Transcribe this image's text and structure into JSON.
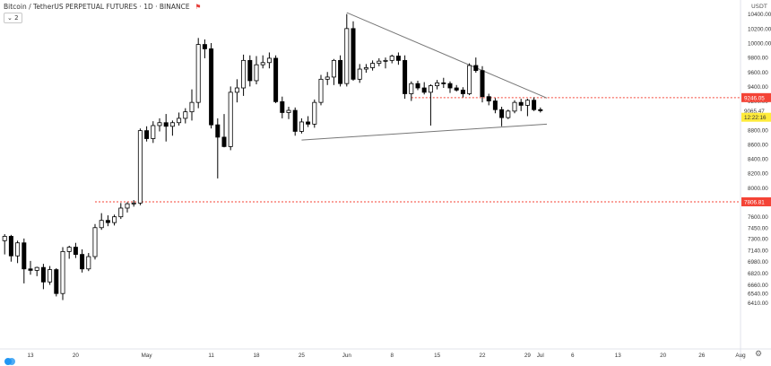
{
  "header": {
    "title": "Bitcoin / TetherUS PERPETUAL FUTURES · 1D · BINANCE",
    "flag": "⚑",
    "interval_button": "⌄ 2"
  },
  "price_axis": {
    "unit": "USDT",
    "ticks": [
      "10400.00",
      "10200.00",
      "10000.00",
      "9800.00",
      "9600.00",
      "9400.00",
      "9200.00",
      "8800.00",
      "8600.00",
      "8400.00",
      "8200.00",
      "8000.00",
      "7800.00",
      "7600.00",
      "7450.00",
      "7300.00",
      "7140.00",
      "6980.00",
      "6820.00",
      "6660.00",
      "6540.00",
      "6410.00"
    ],
    "labels": [
      {
        "text": "9246.05",
        "price": 9246.05,
        "bg": "#f44336",
        "color": "#ffffff"
      },
      {
        "text": "9065.47",
        "price": 9065.47,
        "bg": "#ffffff",
        "color": "#333333"
      },
      {
        "text": "12:22:16",
        "price": 8975,
        "bg": "#ffeb3b",
        "color": "#333333"
      },
      {
        "text": "7806.81",
        "price": 7806.81,
        "bg": "#f44336",
        "color": "#ffffff"
      }
    ]
  },
  "time_axis": {
    "ticks": [
      {
        "label": "13",
        "day": 0
      },
      {
        "label": "20",
        "day": 7
      },
      {
        "label": "May",
        "day": 18
      },
      {
        "label": "11",
        "day": 28
      },
      {
        "label": "18",
        "day": 35
      },
      {
        "label": "25",
        "day": 42
      },
      {
        "label": "Jun",
        "day": 49
      },
      {
        "label": "8",
        "day": 56
      },
      {
        "label": "15",
        "day": 63
      },
      {
        "label": "22",
        "day": 70
      },
      {
        "label": "29",
        "day": 77
      },
      {
        "label": "Jul",
        "day": 79
      },
      {
        "label": "6",
        "day": 84
      },
      {
        "label": "13",
        "day": 91
      },
      {
        "label": "20",
        "day": 98
      },
      {
        "label": "26",
        "day": 104
      },
      {
        "label": "Aug",
        "day": 110
      }
    ]
  },
  "chart_data": {
    "type": "candlestick",
    "title": "Bitcoin / TetherUS PERPETUAL FUTURES · 1D · BINANCE",
    "candles": [
      {
        "day": -4,
        "o": 7270,
        "h": 7360,
        "l": 7080,
        "c": 7330
      },
      {
        "day": -3,
        "o": 7330,
        "h": 7350,
        "l": 6980,
        "c": 7060
      },
      {
        "day": -2,
        "o": 7060,
        "h": 7270,
        "l": 6960,
        "c": 7240
      },
      {
        "day": -1,
        "o": 7240,
        "h": 7300,
        "l": 6680,
        "c": 6880
      },
      {
        "day": 0,
        "o": 6880,
        "h": 6990,
        "l": 6800,
        "c": 6860
      },
      {
        "day": 1,
        "o": 6860,
        "h": 6910,
        "l": 6780,
        "c": 6900
      },
      {
        "day": 2,
        "o": 6900,
        "h": 6950,
        "l": 6600,
        "c": 6700
      },
      {
        "day": 3,
        "o": 6700,
        "h": 6920,
        "l": 6660,
        "c": 6870
      },
      {
        "day": 4,
        "o": 6870,
        "h": 6890,
        "l": 6500,
        "c": 6540
      },
      {
        "day": 5,
        "o": 6540,
        "h": 7180,
        "l": 6450,
        "c": 7120
      },
      {
        "day": 6,
        "o": 7120,
        "h": 7200,
        "l": 7020,
        "c": 7180
      },
      {
        "day": 7,
        "o": 7180,
        "h": 7240,
        "l": 7030,
        "c": 7080
      },
      {
        "day": 8,
        "o": 7080,
        "h": 7150,
        "l": 6830,
        "c": 6880
      },
      {
        "day": 9,
        "o": 6880,
        "h": 7100,
        "l": 6850,
        "c": 7050
      },
      {
        "day": 10,
        "o": 7050,
        "h": 7500,
        "l": 7010,
        "c": 7450
      },
      {
        "day": 11,
        "o": 7450,
        "h": 7650,
        "l": 7420,
        "c": 7550
      },
      {
        "day": 12,
        "o": 7550,
        "h": 7620,
        "l": 7470,
        "c": 7520
      },
      {
        "day": 13,
        "o": 7520,
        "h": 7630,
        "l": 7480,
        "c": 7600
      },
      {
        "day": 14,
        "o": 7600,
        "h": 7790,
        "l": 7570,
        "c": 7720
      },
      {
        "day": 15,
        "o": 7720,
        "h": 7800,
        "l": 7660,
        "c": 7780
      },
      {
        "day": 16,
        "o": 7780,
        "h": 7830,
        "l": 7740,
        "c": 7790
      },
      {
        "day": 17,
        "o": 7790,
        "h": 8820,
        "l": 7760,
        "c": 8790
      },
      {
        "day": 18,
        "o": 8790,
        "h": 8850,
        "l": 8640,
        "c": 8680
      },
      {
        "day": 19,
        "o": 8680,
        "h": 8920,
        "l": 8620,
        "c": 8860
      },
      {
        "day": 20,
        "o": 8860,
        "h": 8960,
        "l": 8780,
        "c": 8900
      },
      {
        "day": 21,
        "o": 8900,
        "h": 9020,
        "l": 8640,
        "c": 8850
      },
      {
        "day": 22,
        "o": 8850,
        "h": 8930,
        "l": 8720,
        "c": 8900
      },
      {
        "day": 23,
        "o": 8900,
        "h": 9040,
        "l": 8860,
        "c": 8960
      },
      {
        "day": 24,
        "o": 8960,
        "h": 9100,
        "l": 8890,
        "c": 9050
      },
      {
        "day": 25,
        "o": 9050,
        "h": 9360,
        "l": 8930,
        "c": 9180
      },
      {
        "day": 26,
        "o": 9180,
        "h": 10070,
        "l": 9100,
        "c": 9980
      },
      {
        "day": 27,
        "o": 9980,
        "h": 10050,
        "l": 9790,
        "c": 9920
      },
      {
        "day": 28,
        "o": 9920,
        "h": 10000,
        "l": 8820,
        "c": 8870
      },
      {
        "day": 29,
        "o": 8870,
        "h": 8960,
        "l": 8130,
        "c": 8700
      },
      {
        "day": 30,
        "o": 8700,
        "h": 9020,
        "l": 8560,
        "c": 8570
      },
      {
        "day": 31,
        "o": 8570,
        "h": 9400,
        "l": 8520,
        "c": 9320
      },
      {
        "day": 32,
        "o": 9320,
        "h": 9500,
        "l": 9180,
        "c": 9380
      },
      {
        "day": 33,
        "o": 9380,
        "h": 9840,
        "l": 9270,
        "c": 9760
      },
      {
        "day": 34,
        "o": 9760,
        "h": 9830,
        "l": 9400,
        "c": 9480
      },
      {
        "day": 35,
        "o": 9480,
        "h": 9820,
        "l": 9430,
        "c": 9700
      },
      {
        "day": 36,
        "o": 9700,
        "h": 9830,
        "l": 9650,
        "c": 9730
      },
      {
        "day": 37,
        "o": 9730,
        "h": 9870,
        "l": 9650,
        "c": 9790
      },
      {
        "day": 38,
        "o": 9790,
        "h": 9830,
        "l": 9170,
        "c": 9190
      },
      {
        "day": 39,
        "o": 9190,
        "h": 9260,
        "l": 8960,
        "c": 9040
      },
      {
        "day": 40,
        "o": 9040,
        "h": 9120,
        "l": 8950,
        "c": 9070
      },
      {
        "day": 41,
        "o": 9070,
        "h": 9110,
        "l": 8720,
        "c": 8780
      },
      {
        "day": 42,
        "o": 8780,
        "h": 8960,
        "l": 8750,
        "c": 8910
      },
      {
        "day": 43,
        "o": 8910,
        "h": 8990,
        "l": 8840,
        "c": 8880
      },
      {
        "day": 44,
        "o": 8880,
        "h": 9220,
        "l": 8830,
        "c": 9180
      },
      {
        "day": 45,
        "o": 9180,
        "h": 9560,
        "l": 9140,
        "c": 9500
      },
      {
        "day": 46,
        "o": 9500,
        "h": 9600,
        "l": 9420,
        "c": 9530
      },
      {
        "day": 47,
        "o": 9530,
        "h": 9780,
        "l": 9420,
        "c": 9760
      },
      {
        "day": 48,
        "o": 9760,
        "h": 9830,
        "l": 9400,
        "c": 9440
      },
      {
        "day": 49,
        "o": 9440,
        "h": 10400,
        "l": 9400,
        "c": 10200
      },
      {
        "day": 50,
        "o": 10200,
        "h": 10300,
        "l": 9480,
        "c": 9500
      },
      {
        "day": 51,
        "o": 9500,
        "h": 9710,
        "l": 9450,
        "c": 9640
      },
      {
        "day": 52,
        "o": 9640,
        "h": 9710,
        "l": 9590,
        "c": 9660
      },
      {
        "day": 53,
        "o": 9660,
        "h": 9760,
        "l": 9620,
        "c": 9720
      },
      {
        "day": 54,
        "o": 9720,
        "h": 9790,
        "l": 9680,
        "c": 9750
      },
      {
        "day": 55,
        "o": 9750,
        "h": 9800,
        "l": 9650,
        "c": 9760
      },
      {
        "day": 56,
        "o": 9760,
        "h": 9840,
        "l": 9720,
        "c": 9820
      },
      {
        "day": 57,
        "o": 9820,
        "h": 9870,
        "l": 9700,
        "c": 9760
      },
      {
        "day": 58,
        "o": 9760,
        "h": 9830,
        "l": 9230,
        "c": 9300
      },
      {
        "day": 59,
        "o": 9300,
        "h": 9470,
        "l": 9200,
        "c": 9440
      },
      {
        "day": 60,
        "o": 9440,
        "h": 9480,
        "l": 9350,
        "c": 9380
      },
      {
        "day": 61,
        "o": 9380,
        "h": 9460,
        "l": 9290,
        "c": 9320
      },
      {
        "day": 62,
        "o": 9320,
        "h": 9430,
        "l": 8860,
        "c": 9410
      },
      {
        "day": 63,
        "o": 9410,
        "h": 9490,
        "l": 9360,
        "c": 9450
      },
      {
        "day": 64,
        "o": 9450,
        "h": 9520,
        "l": 9380,
        "c": 9440
      },
      {
        "day": 65,
        "o": 9440,
        "h": 9470,
        "l": 9310,
        "c": 9380
      },
      {
        "day": 66,
        "o": 9380,
        "h": 9420,
        "l": 9330,
        "c": 9350
      },
      {
        "day": 67,
        "o": 9350,
        "h": 9390,
        "l": 9250,
        "c": 9300
      },
      {
        "day": 68,
        "o": 9300,
        "h": 9720,
        "l": 9280,
        "c": 9690
      },
      {
        "day": 69,
        "o": 9690,
        "h": 9800,
        "l": 9590,
        "c": 9620
      },
      {
        "day": 70,
        "o": 9620,
        "h": 9680,
        "l": 9180,
        "c": 9260
      },
      {
        "day": 71,
        "o": 9260,
        "h": 9300,
        "l": 9140,
        "c": 9200
      },
      {
        "day": 72,
        "o": 9200,
        "h": 9240,
        "l": 9030,
        "c": 9080
      },
      {
        "day": 73,
        "o": 9080,
        "h": 9120,
        "l": 8850,
        "c": 8970
      },
      {
        "day": 74,
        "o": 8970,
        "h": 9080,
        "l": 8950,
        "c": 9060
      },
      {
        "day": 75,
        "o": 9060,
        "h": 9210,
        "l": 9030,
        "c": 9180
      },
      {
        "day": 76,
        "o": 9180,
        "h": 9230,
        "l": 9060,
        "c": 9140
      },
      {
        "day": 77,
        "o": 9140,
        "h": 9230,
        "l": 8990,
        "c": 9210
      },
      {
        "day": 78,
        "o": 9210,
        "h": 9250,
        "l": 9060,
        "c": 9080
      },
      {
        "day": 79,
        "o": 9080,
        "h": 9110,
        "l": 9040,
        "c": 9065.47
      }
    ],
    "trendlines": [
      {
        "name": "upper",
        "from": {
          "day": 49,
          "price": 10420
        },
        "to": {
          "day": 80,
          "price": 9240
        }
      },
      {
        "name": "lower",
        "from": {
          "day": 42,
          "price": 8660
        },
        "to": {
          "day": 80,
          "price": 8880
        }
      }
    ],
    "horizontal_lines": [
      {
        "price": 9246.05,
        "from_day": 59,
        "color": "#f44336"
      },
      {
        "price": 7806.81,
        "from_day": 10,
        "color": "#f44336"
      }
    ],
    "colors": {
      "up": "#ffffff",
      "down": "#000000",
      "wick": "#000000",
      "trendline": "#777777",
      "background": "#ffffff",
      "grid": "#f0f3fa"
    },
    "y_range": [
      6350,
      10450
    ],
    "x_range": [
      -4.5,
      110
    ],
    "grid": true
  }
}
